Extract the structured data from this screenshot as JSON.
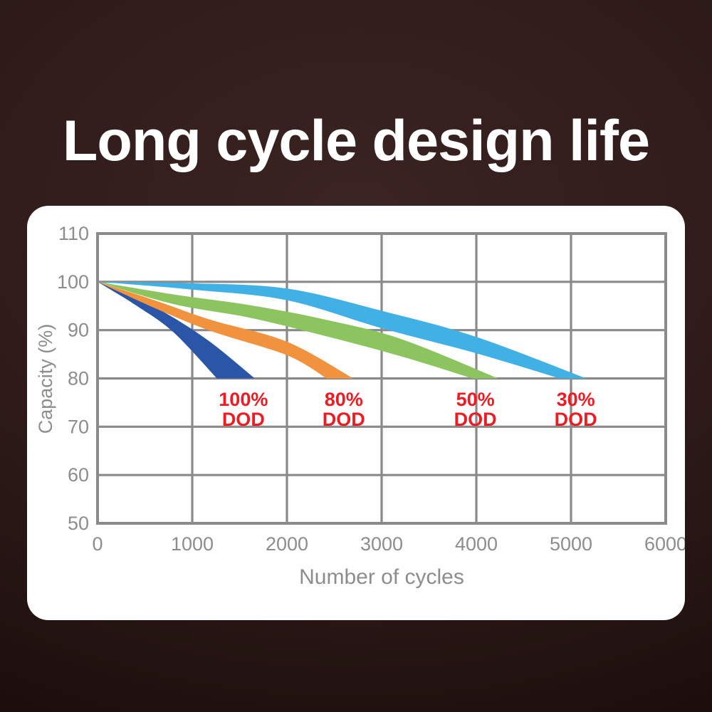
{
  "page": {
    "title": "Long cycle design life",
    "background_color": "#2e1b19",
    "card_color": "#fefefe",
    "title_color": "#ffffff"
  },
  "chart_data": {
    "type": "area",
    "title": "",
    "xlabel": "Number of cycles",
    "ylabel": "Capacity (%)",
    "xlim": [
      0,
      6000
    ],
    "ylim": [
      50,
      110
    ],
    "x_ticks": [
      0,
      1000,
      2000,
      3000,
      4000,
      5000,
      6000
    ],
    "y_ticks": [
      110,
      100,
      90,
      80,
      70,
      60,
      50
    ],
    "grid": true,
    "grid_color": "#8a8a8a",
    "tick_color": "#8d8d8d",
    "legend": "none",
    "series": [
      {
        "name": "100% DOD",
        "color": "#2b55a7",
        "top_edge": [
          [
            0,
            100
          ],
          [
            400,
            96.8
          ],
          [
            800,
            92.6
          ],
          [
            1200,
            87.4
          ],
          [
            1660,
            80
          ]
        ],
        "bottom_edge": [
          [
            0,
            100
          ],
          [
            400,
            95.2
          ],
          [
            800,
            89.6
          ],
          [
            1260,
            80
          ]
        ]
      },
      {
        "name": "80% DOD",
        "color": "#f0923e",
        "top_edge": [
          [
            0,
            100
          ],
          [
            600,
            96.2
          ],
          [
            1200,
            92.1
          ],
          [
            2000,
            87.6
          ],
          [
            2700,
            80
          ]
        ],
        "bottom_edge": [
          [
            0,
            100
          ],
          [
            600,
            94.6
          ],
          [
            1200,
            89.8
          ],
          [
            2000,
            84.8
          ],
          [
            2420,
            80
          ]
        ]
      },
      {
        "name": "50% DOD",
        "color": "#8cc560",
        "top_edge": [
          [
            0,
            100
          ],
          [
            800,
            97.4
          ],
          [
            1600,
            95.2
          ],
          [
            2400,
            92.2
          ],
          [
            3200,
            88.2
          ],
          [
            4230,
            80
          ]
        ],
        "bottom_edge": [
          [
            0,
            100
          ],
          [
            800,
            95.4
          ],
          [
            1600,
            92.6
          ],
          [
            2400,
            88.8
          ],
          [
            3200,
            84.6
          ],
          [
            3960,
            80
          ]
        ]
      },
      {
        "name": "30% DOD",
        "color": "#41b0e5",
        "top_edge": [
          [
            0,
            100
          ],
          [
            1000,
            99.7
          ],
          [
            2000,
            98.6
          ],
          [
            3000,
            94.0
          ],
          [
            4000,
            88.6
          ],
          [
            5160,
            80
          ]
        ],
        "bottom_edge": [
          [
            0,
            100
          ],
          [
            1000,
            98.4
          ],
          [
            2000,
            96.2
          ],
          [
            3000,
            90.4
          ],
          [
            4000,
            85.2
          ],
          [
            4880,
            80
          ]
        ]
      }
    ],
    "annotations": [
      {
        "lines": [
          "100%",
          "DOD"
        ],
        "x": 1540,
        "y_capacity": 73.6,
        "color": "#ed1c24"
      },
      {
        "lines": [
          "80%",
          "DOD"
        ],
        "x": 2600,
        "y_capacity": 73.6,
        "color": "#ed1c24"
      },
      {
        "lines": [
          "50%",
          "DOD"
        ],
        "x": 3990,
        "y_capacity": 73.6,
        "color": "#ed1c24"
      },
      {
        "lines": [
          "30%",
          "DOD"
        ],
        "x": 5050,
        "y_capacity": 73.6,
        "color": "#ed1c24"
      }
    ]
  }
}
